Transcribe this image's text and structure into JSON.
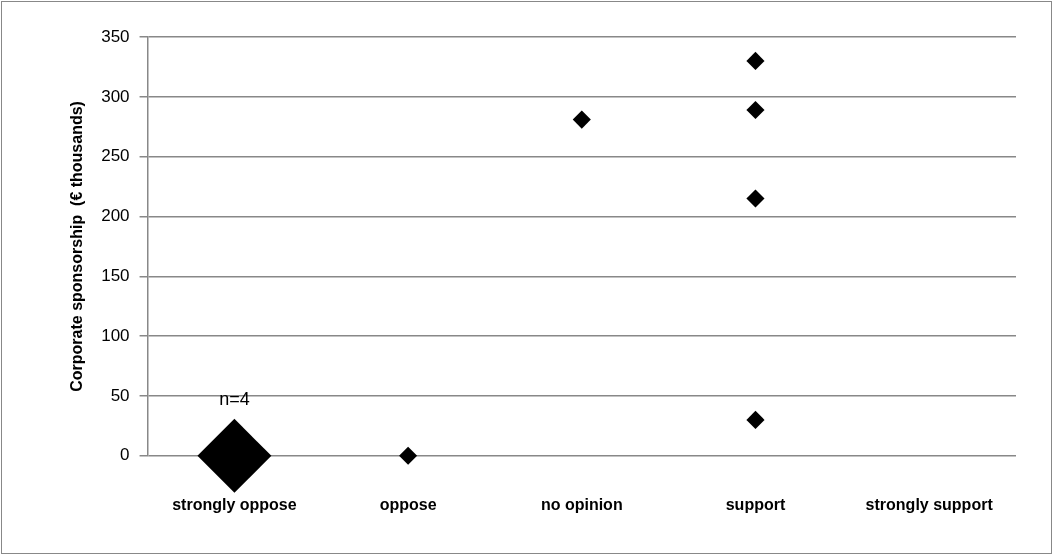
{
  "chart_data": {
    "type": "bubble",
    "ylabel": "Corporate sponsorship  (€ thousands)",
    "categories": [
      "strongly oppose",
      "oppose",
      "no opinion",
      "support",
      "strongly support"
    ],
    "series": [
      {
        "color": "#000000",
        "x": [
          "strongly oppose",
          "oppose",
          "no opinion",
          "support",
          "support",
          "support",
          "support"
        ],
        "values": [
          0,
          0,
          281,
          330,
          289,
          215,
          30
        ],
        "sizes": [
          1,
          0.06,
          0.06,
          0.06,
          0.06,
          0.06,
          0.06
        ]
      }
    ],
    "ylim": [
      0,
      350
    ],
    "yticks": [
      0,
      50,
      100,
      150,
      200,
      250,
      300,
      350
    ],
    "grid": "y",
    "legend": false,
    "marker": "diamond",
    "annotations": [
      "n=4"
    ]
  }
}
